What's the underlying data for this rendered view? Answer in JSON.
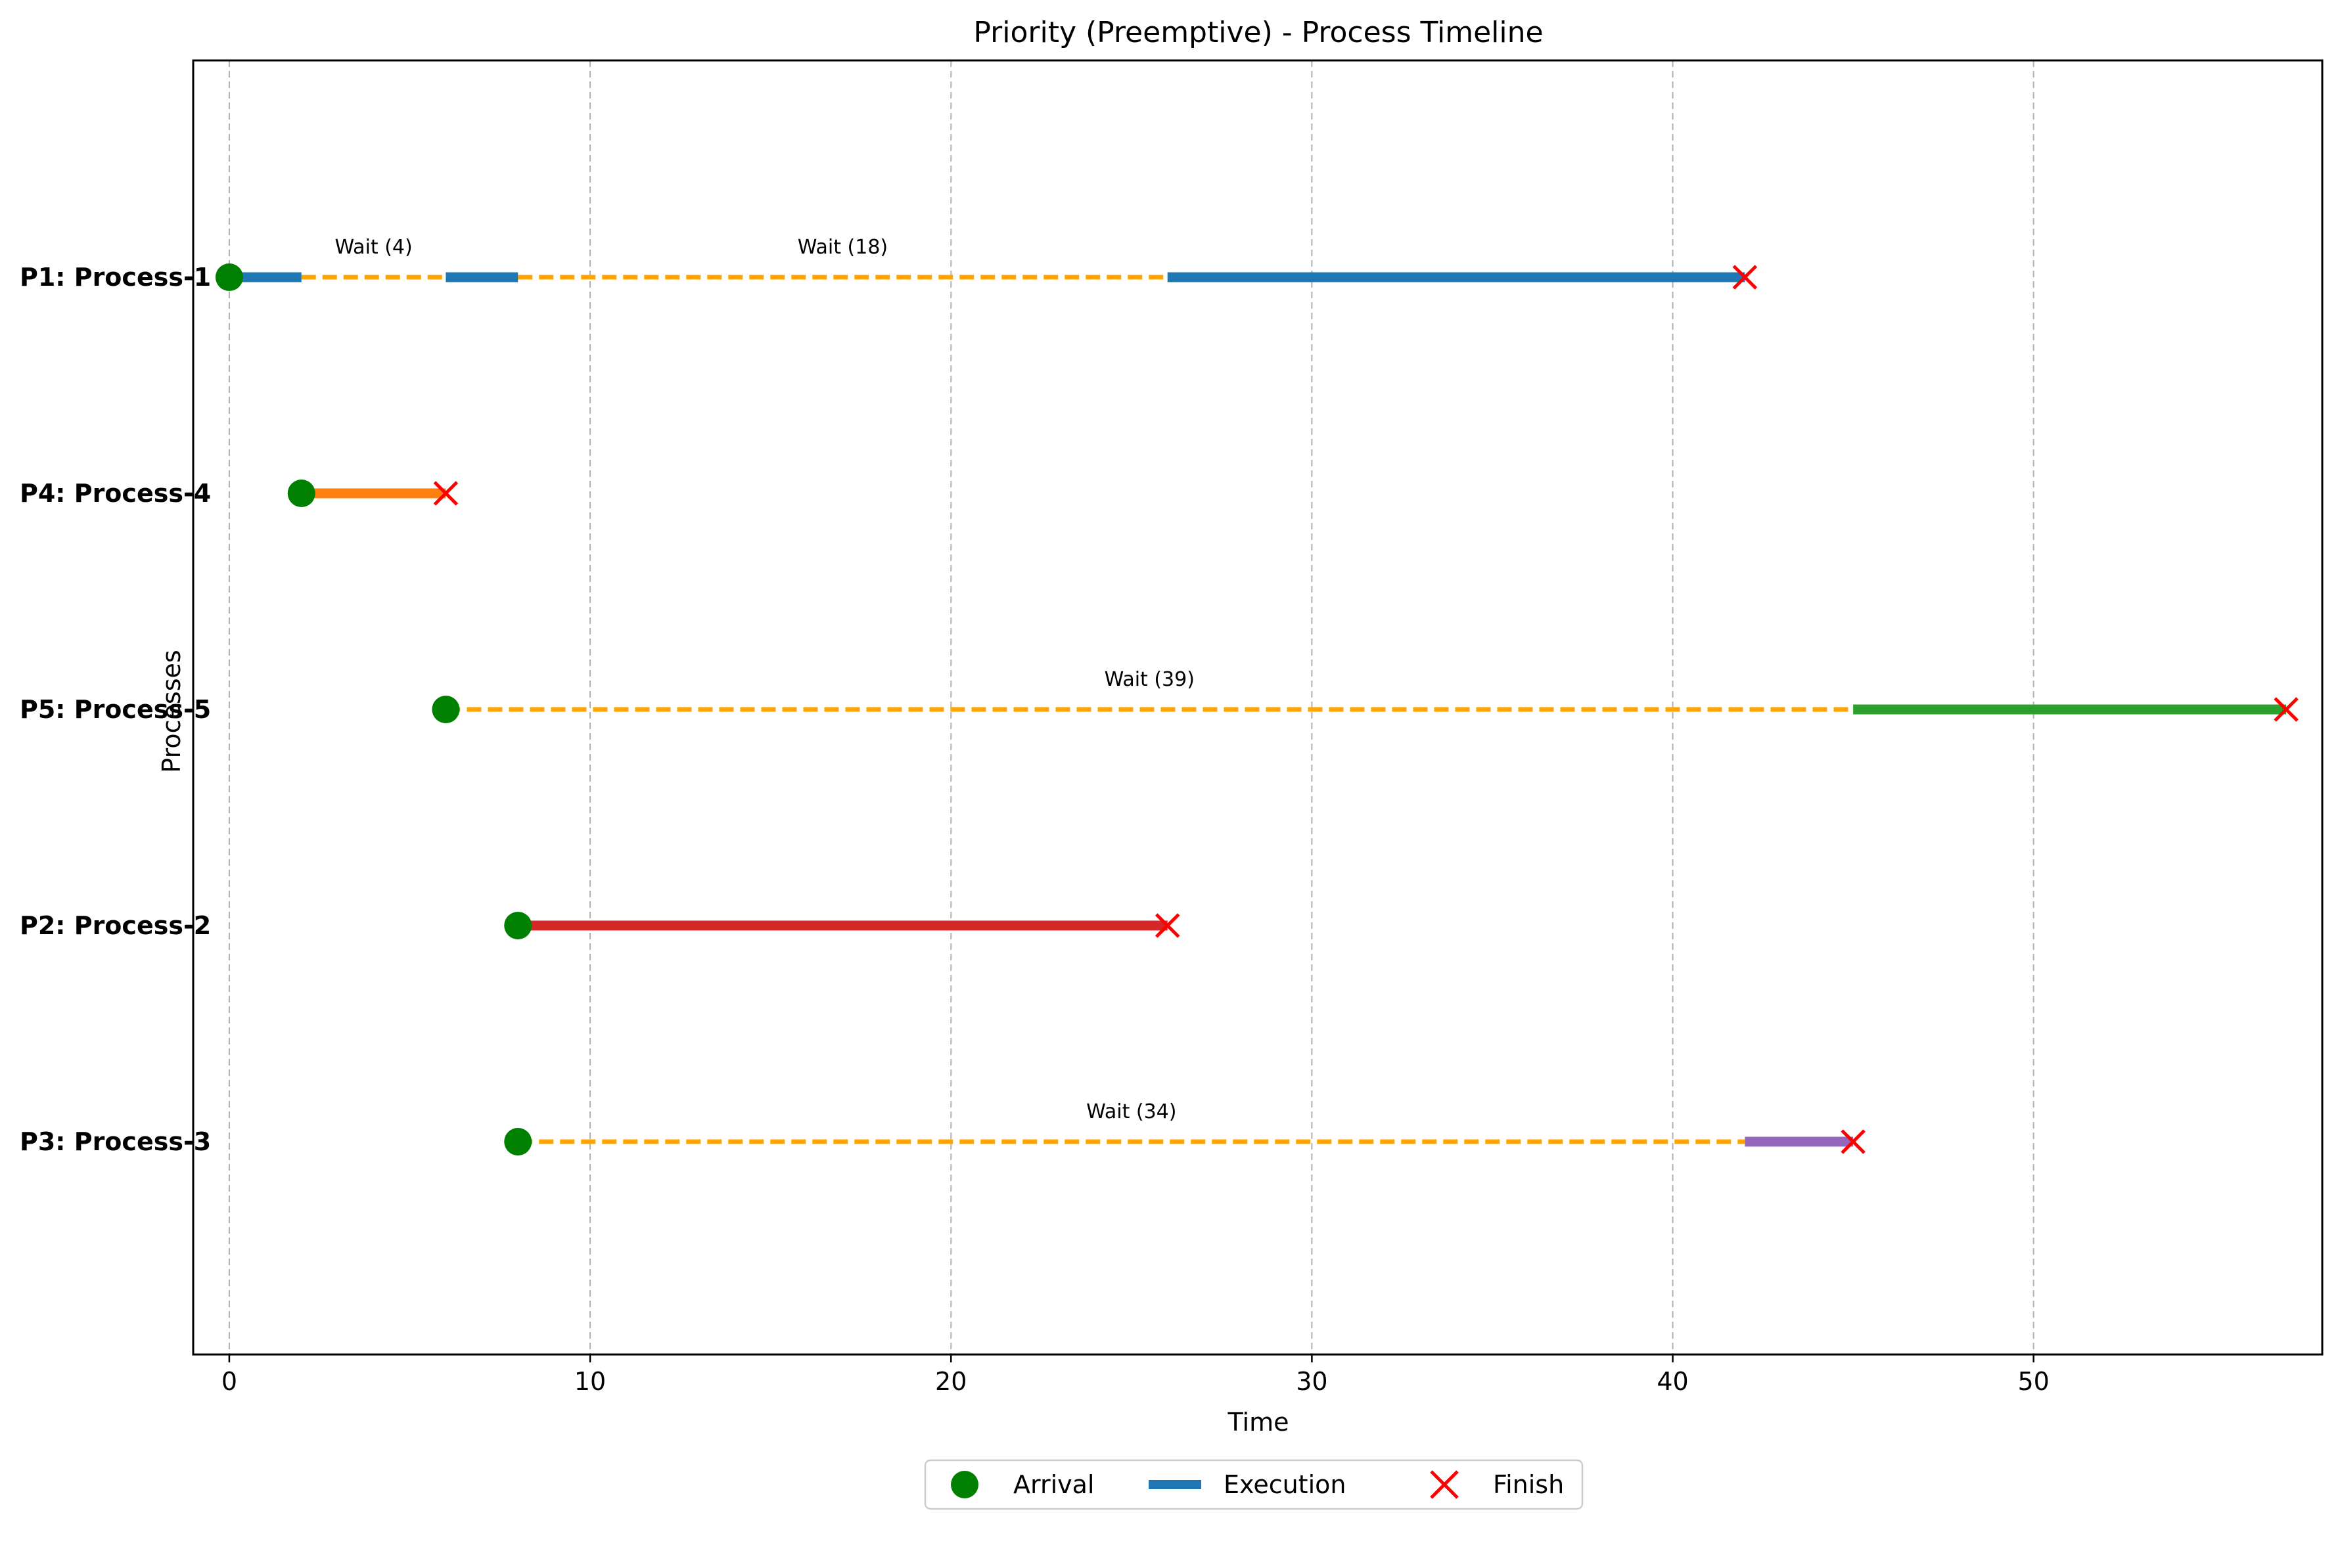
{
  "chart_data": {
    "type": "timeline",
    "title": "Priority (Preemptive) - Process Timeline",
    "xlabel": "Time",
    "ylabel": "Processes",
    "xlim": [
      -1,
      58
    ],
    "xticks": [
      0,
      10,
      20,
      30,
      40,
      50
    ],
    "grid": "vertical dashed",
    "legend_position": "bottom-center",
    "legend": [
      {
        "label": "Arrival",
        "marker": "circle",
        "color": "#008000"
      },
      {
        "label": "Execution",
        "marker": "line",
        "color": "#1f77b4"
      },
      {
        "label": "Finish",
        "marker": "x",
        "color": "#ff0000"
      }
    ],
    "wait_color": "#ffa500",
    "processes": [
      {
        "label": "P1: Process-1",
        "color": "#1f77b4",
        "arrival": 0,
        "finish": 42,
        "execution": [
          [
            0,
            2
          ],
          [
            6,
            8
          ],
          [
            26,
            42
          ]
        ],
        "waits": [
          {
            "start": 2,
            "end": 6,
            "label": "Wait (4)"
          },
          {
            "start": 8,
            "end": 26,
            "label": "Wait (18)"
          }
        ]
      },
      {
        "label": "P4: Process-4",
        "color": "#ff7f0e",
        "arrival": 2,
        "finish": 6,
        "execution": [
          [
            2,
            6
          ]
        ],
        "waits": []
      },
      {
        "label": "P5: Process-5",
        "color": "#2ca02c",
        "arrival": 6,
        "finish": 57,
        "execution": [
          [
            45,
            57
          ]
        ],
        "waits": [
          {
            "start": 6,
            "end": 45,
            "label": "Wait (39)"
          }
        ]
      },
      {
        "label": "P2: Process-2",
        "color": "#d62728",
        "arrival": 8,
        "finish": 26,
        "execution": [
          [
            8,
            26
          ]
        ],
        "waits": []
      },
      {
        "label": "P3: Process-3",
        "color": "#9467bd",
        "arrival": 8,
        "finish": 45,
        "execution": [
          [
            42,
            45
          ]
        ],
        "waits": [
          {
            "start": 8,
            "end": 42,
            "label": "Wait (34)"
          }
        ]
      }
    ]
  }
}
